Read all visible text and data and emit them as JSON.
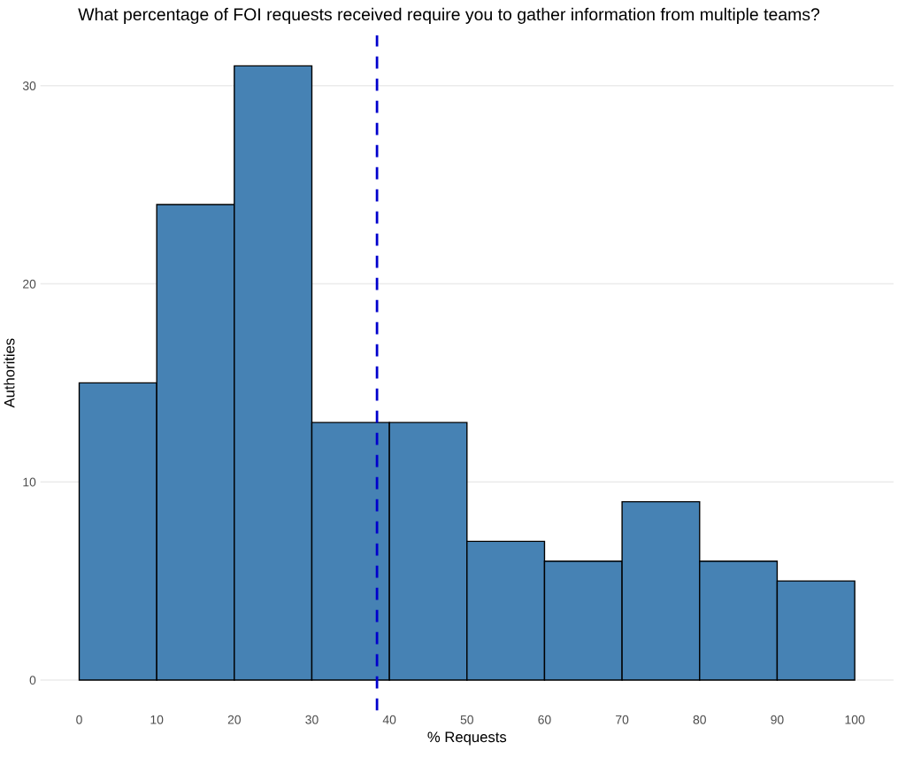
{
  "chart_data": {
    "type": "histogram",
    "title": "What percentage of FOI requests received require you to gather information from multiple teams?",
    "xlabel": "% Requests",
    "ylabel": "Authorities",
    "bins": [
      0,
      10,
      20,
      30,
      40,
      50,
      60,
      70,
      80,
      90,
      100
    ],
    "values": [
      15,
      24,
      31,
      13,
      13,
      7,
      6,
      9,
      6,
      5
    ],
    "color": "#4682b4",
    "xlim": [
      -5,
      105
    ],
    "xticks": [
      0,
      10,
      20,
      30,
      40,
      50,
      60,
      70,
      80,
      90,
      100
    ],
    "ylim": [
      -1.55,
      32.55
    ],
    "yticks": [
      0,
      10,
      20,
      30
    ],
    "grid": "y",
    "ref_lines": [
      {
        "axis": "x",
        "value": 38.4,
        "color": "#0000cd",
        "line_style": "dashed"
      }
    ]
  }
}
